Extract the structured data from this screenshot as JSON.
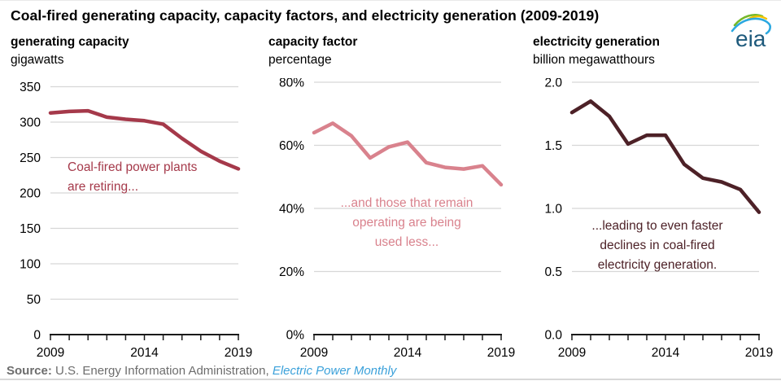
{
  "title": "Coal-fired generating capacity, capacity factors, and electricity generation (2009-2019)",
  "logo": {
    "text": "eia"
  },
  "theme": {
    "grid": "#d7d7d7",
    "axis": "#1a1a1a",
    "source_gray": "#6d6d6d",
    "link_blue": "#3ba1da"
  },
  "x_axis_labels": [
    "2009",
    "2014",
    "2019"
  ],
  "chart_data": [
    {
      "type": "line",
      "title": "generating capacity",
      "ylabel": "gigawatts",
      "x": [
        2009,
        2010,
        2011,
        2012,
        2013,
        2014,
        2015,
        2016,
        2017,
        2018,
        2019
      ],
      "values": [
        313,
        315,
        316,
        307,
        304,
        302,
        297,
        277,
        259,
        245,
        234
      ],
      "ylim": [
        0,
        350
      ],
      "y_tick_labels": [
        "0",
        "50",
        "100",
        "150",
        "200",
        "250",
        "300",
        "350"
      ],
      "grid": "horizontal",
      "legend": "none",
      "color": "#a5394a",
      "annotation": "Coal-fired power plants are retiring..."
    },
    {
      "type": "line",
      "title": "capacity factor",
      "ylabel": "percentage",
      "x": [
        2009,
        2010,
        2011,
        2012,
        2013,
        2014,
        2015,
        2016,
        2017,
        2018,
        2019
      ],
      "values": [
        64,
        67,
        63,
        56,
        59.5,
        61,
        54.5,
        53,
        52.5,
        53.5,
        47.5
      ],
      "ylim": [
        0,
        80
      ],
      "y_tick_labels": [
        "0%",
        "20%",
        "40%",
        "60%",
        "80%"
      ],
      "grid": "horizontal",
      "legend": "none",
      "color": "#d9828d",
      "annotation": "...and those that remain operating are being used less..."
    },
    {
      "type": "line",
      "title": "electricity generation",
      "ylabel": "billion megawatthours",
      "x": [
        2009,
        2010,
        2011,
        2012,
        2013,
        2014,
        2015,
        2016,
        2017,
        2018,
        2019
      ],
      "values": [
        1.76,
        1.85,
        1.73,
        1.51,
        1.58,
        1.58,
        1.35,
        1.24,
        1.21,
        1.15,
        0.97
      ],
      "ylim": [
        0,
        2.0
      ],
      "y_tick_labels": [
        "0.0",
        "0.5",
        "1.0",
        "1.5",
        "2.0"
      ],
      "grid": "horizontal",
      "legend": "none",
      "color": "#4d2127",
      "annotation": "...leading to even faster declines in coal-fired electricity generation."
    }
  ],
  "source": {
    "label": "Source:",
    "text": " U.S. Energy Information Administration, ",
    "link": "Electric Power Monthly"
  }
}
